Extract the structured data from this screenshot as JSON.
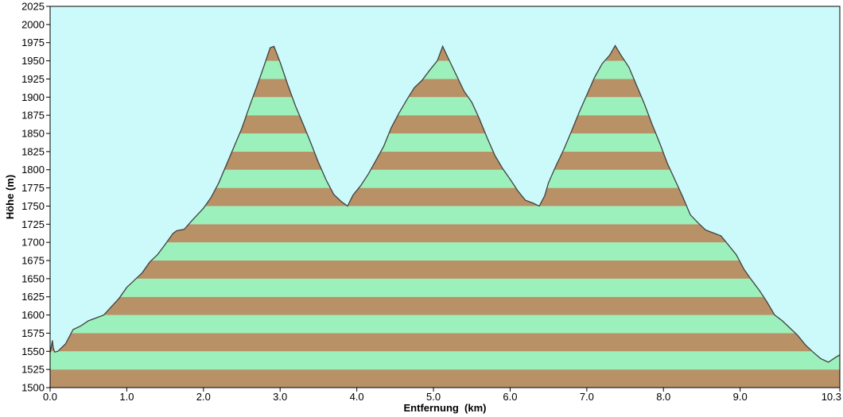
{
  "chart_data": {
    "type": "area",
    "title": "",
    "xlabel": "Entfernung  (km)",
    "ylabel": "Höhe (m)",
    "xlim": [
      0,
      10.3
    ],
    "ylim": [
      1500,
      2025
    ],
    "y_ticks": [
      1500,
      1525,
      1550,
      1575,
      1600,
      1625,
      1650,
      1675,
      1700,
      1725,
      1750,
      1775,
      1800,
      1825,
      1850,
      1875,
      1900,
      1925,
      1950,
      1975,
      2000,
      2025
    ],
    "y_tick_labels": [
      "1500",
      "1525",
      "1550",
      "1575",
      "1600",
      "1625",
      "1650",
      "1675",
      "1700",
      "1725",
      "1750",
      "1775",
      "1800",
      "1825",
      "1850",
      "1875",
      "1900",
      "1925",
      "1950",
      "1975",
      "2000",
      "2025"
    ],
    "x_ticks": [
      0,
      1,
      2,
      3,
      4,
      5,
      6,
      7,
      8,
      9,
      10.3
    ],
    "x_tick_labels": [
      "0.0",
      "1.0",
      "2.0",
      "3.0",
      "4.0",
      "5.0",
      "6.0",
      "7.0",
      "8.0",
      "9.0",
      "10.3"
    ],
    "band_size": 25,
    "colors": {
      "background": "#ccfafa",
      "band_light": "#9cf0bc",
      "band_dark": "#b89166",
      "profile_line": "#404040",
      "frame": "#000000"
    },
    "x": [
      0.0,
      0.03,
      0.04,
      0.06,
      0.1,
      0.2,
      0.3,
      0.4,
      0.5,
      0.7,
      0.9,
      1.0,
      1.1,
      1.2,
      1.3,
      1.4,
      1.5,
      1.6,
      1.65,
      1.75,
      1.85,
      2.0,
      2.1,
      2.2,
      2.3,
      2.4,
      2.5,
      2.6,
      2.7,
      2.8,
      2.87,
      2.92,
      3.0,
      3.1,
      3.2,
      3.3,
      3.4,
      3.5,
      3.6,
      3.7,
      3.8,
      3.88,
      3.95,
      4.05,
      4.15,
      4.25,
      4.35,
      4.45,
      4.55,
      4.65,
      4.75,
      4.85,
      4.95,
      5.05,
      5.12,
      5.2,
      5.3,
      5.4,
      5.5,
      5.6,
      5.7,
      5.8,
      5.9,
      6.0,
      6.1,
      6.2,
      6.3,
      6.38,
      6.45,
      6.5,
      6.6,
      6.7,
      6.8,
      6.9,
      7.0,
      7.1,
      7.2,
      7.3,
      7.37,
      7.45,
      7.55,
      7.65,
      7.75,
      7.85,
      7.95,
      8.05,
      8.15,
      8.25,
      8.35,
      8.45,
      8.55,
      8.65,
      8.75,
      8.85,
      8.95,
      9.05,
      9.15,
      9.25,
      9.35,
      9.45,
      9.55,
      9.65,
      9.75,
      9.85,
      9.95,
      10.05,
      10.15,
      10.25,
      10.3
    ],
    "y": [
      1548,
      1565,
      1555,
      1549,
      1550,
      1560,
      1580,
      1585,
      1592,
      1600,
      1623,
      1638,
      1648,
      1658,
      1673,
      1683,
      1697,
      1712,
      1716,
      1718,
      1730,
      1747,
      1762,
      1782,
      1807,
      1832,
      1857,
      1887,
      1916,
      1946,
      1968,
      1970,
      1948,
      1917,
      1888,
      1863,
      1837,
      1810,
      1786,
      1766,
      1756,
      1750,
      1765,
      1778,
      1794,
      1813,
      1832,
      1858,
      1878,
      1896,
      1913,
      1923,
      1937,
      1950,
      1970,
      1952,
      1930,
      1908,
      1893,
      1870,
      1844,
      1820,
      1802,
      1787,
      1771,
      1758,
      1754,
      1750,
      1764,
      1782,
      1806,
      1828,
      1853,
      1879,
      1903,
      1927,
      1946,
      1958,
      1971,
      1957,
      1941,
      1916,
      1891,
      1863,
      1837,
      1809,
      1786,
      1763,
      1738,
      1727,
      1717,
      1713,
      1709,
      1696,
      1683,
      1663,
      1648,
      1634,
      1618,
      1600,
      1592,
      1582,
      1572,
      1559,
      1549,
      1540,
      1535,
      1542,
      1545
    ]
  }
}
